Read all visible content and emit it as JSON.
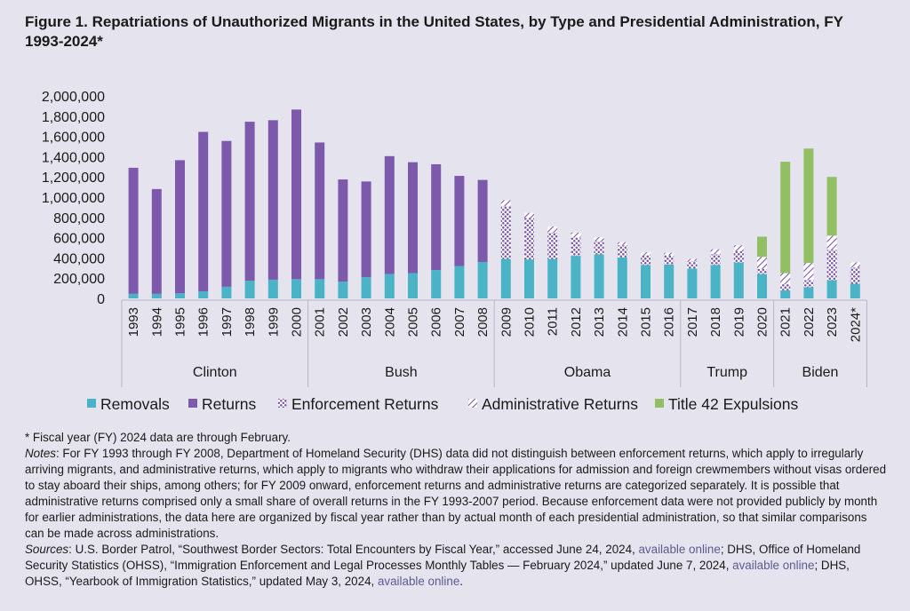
{
  "title": "Figure 1. Repatriations of Unauthorized Migrants in the United States, by Type and Presidential Administration, FY 1993-2024*",
  "chart_data": {
    "type": "bar",
    "stacked": true,
    "categories": [
      "1993",
      "1994",
      "1995",
      "1996",
      "1997",
      "1998",
      "1999",
      "2000",
      "2001",
      "2002",
      "2003",
      "2004",
      "2005",
      "2006",
      "2007",
      "2008",
      "2009",
      "2010",
      "2011",
      "2012",
      "2013",
      "2014",
      "2015",
      "2016",
      "2017",
      "2018",
      "2019",
      "2020",
      "2021",
      "2022",
      "2023",
      "2024*"
    ],
    "groups": [
      {
        "label": "Clinton",
        "from": 0,
        "to": 7
      },
      {
        "label": "Bush",
        "from": 8,
        "to": 15
      },
      {
        "label": "Obama",
        "from": 16,
        "to": 23
      },
      {
        "label": "Trump",
        "from": 24,
        "to": 27
      },
      {
        "label": "Biden",
        "from": 28,
        "to": 31
      }
    ],
    "series": [
      {
        "name": "Removals",
        "color": "#4bb3c6",
        "pattern": "solid",
        "values": [
          45000,
          45000,
          50000,
          70000,
          115000,
          175000,
          185000,
          190000,
          190000,
          165000,
          210000,
          240000,
          250000,
          280000,
          320000,
          360000,
          390000,
          385000,
          390000,
          420000,
          435000,
          405000,
          330000,
          335000,
          295000,
          330000,
          355000,
          240000,
          80000,
          110000,
          180000,
          145000
        ]
      },
      {
        "name": "Returns",
        "color": "#7d59ac",
        "pattern": "solid",
        "values": [
          1245000,
          1035000,
          1315000,
          1575000,
          1440000,
          1570000,
          1575000,
          1675000,
          1350000,
          1010000,
          945000,
          1165000,
          1095000,
          1045000,
          890000,
          810000,
          0,
          0,
          0,
          0,
          0,
          0,
          0,
          0,
          0,
          0,
          0,
          0,
          0,
          0,
          0,
          0
        ]
      },
      {
        "name": "Enforcement Returns",
        "color": "#7d59ac",
        "pattern": "dots",
        "values": [
          0,
          0,
          0,
          0,
          0,
          0,
          0,
          0,
          0,
          0,
          0,
          0,
          0,
          0,
          0,
          0,
          520000,
          410000,
          260000,
          180000,
          130000,
          120000,
          95000,
          90000,
          70000,
          105000,
          110000,
          50000,
          60000,
          70000,
          300000,
          160000
        ]
      },
      {
        "name": "Administrative Returns",
        "color": "#7d59ac",
        "pattern": "hatch",
        "values": [
          0,
          0,
          0,
          0,
          0,
          0,
          0,
          0,
          0,
          0,
          0,
          0,
          0,
          0,
          0,
          0,
          60000,
          50000,
          60000,
          50000,
          40000,
          30000,
          30000,
          25000,
          25000,
          50000,
          60000,
          120000,
          110000,
          170000,
          140000,
          50000
        ]
      },
      {
        "name": "Title 42 Expulsions",
        "color": "#93bf64",
        "pattern": "solid",
        "values": [
          0,
          0,
          0,
          0,
          0,
          0,
          0,
          0,
          0,
          0,
          0,
          0,
          0,
          0,
          0,
          0,
          0,
          0,
          0,
          0,
          0,
          0,
          0,
          0,
          0,
          0,
          0,
          200000,
          1100000,
          1130000,
          580000,
          0
        ]
      }
    ],
    "ylim": [
      0,
      2000000
    ],
    "yticks": [
      "0",
      "200,000",
      "400,000",
      "600,000",
      "800,000",
      "1,000,000",
      "1,200,000",
      "1,400,000",
      "1,600,000",
      "1,800,000",
      "2,000,000"
    ],
    "grid": false,
    "legend_position": "bottom"
  },
  "notes": {
    "footnote": "* Fiscal year (FY) 2024 data are through February.",
    "notes_label": "Notes",
    "notes_text": ": For FY 1993 through FY 2008, Department of Homeland Security (DHS) data did not distinguish between enforcement returns, which apply to irregularly arriving migrants, and administrative returns, which apply to migrants who withdraw their applications for admission and foreign crewmembers without visas ordered to stay aboard their ships, among others; for FY 2009 onward, enforcement returns and administrative returns are categorized separately. It is possible that administrative returns comprised only a small share of overall returns in the FY 1993-2007 period. Because enforcement data were not provided publicly by month for earlier administrations, the data here are organized by fiscal year rather than by actual month of each presidential administration, so that similar comparisons can be made across administrations.",
    "sources_label": "Sources",
    "sources_1": ": U.S. Border Patrol, “Southwest Border Sectors: Total Encounters by Fiscal Year,” accessed June 24, 2024, ",
    "link_1": "available online",
    "sources_2": "; DHS, Office of Homeland Security Statistics (OHSS), “Immigration Enforcement and Legal Processes Monthly Tables — February 2024,” updated June 7, 2024, ",
    "link_2": "available online",
    "sources_3": "; DHS, OHSS, “Yearbook of Immigration Statistics,” updated May 3, 2024, ",
    "link_3": "available online",
    "sources_4": "."
  }
}
